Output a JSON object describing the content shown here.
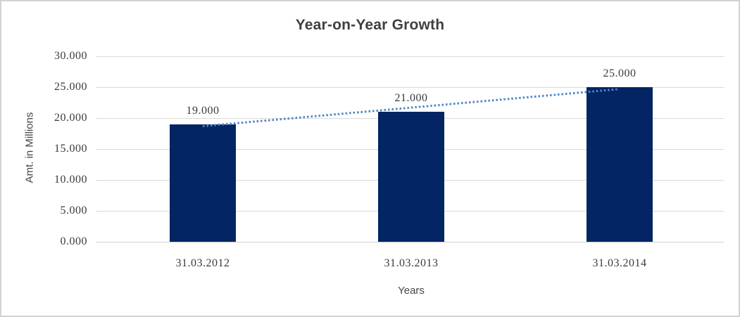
{
  "chart_data": {
    "type": "bar",
    "title": "Year-on-Year Growth",
    "xlabel": "Years",
    "ylabel": "Amt. in Millions",
    "categories": [
      "31.03.2012",
      "31.03.2013",
      "31.03.2014"
    ],
    "values": [
      19,
      21,
      25
    ],
    "data_labels": [
      "19.000",
      "21.000",
      "25.000"
    ],
    "y_ticks": [
      "30.000",
      "25.000",
      "20.000",
      "15.000",
      "10.000",
      "5.000",
      "0.000"
    ],
    "ylim": [
      0,
      30
    ],
    "y_tick_step": 5,
    "grid": true,
    "legend": "none",
    "bar_color": "#032564",
    "trendline": {
      "type": "linear",
      "style": "dotted",
      "color": "#4f86c6",
      "start_value": 18.667,
      "end_value": 24.667
    },
    "colors": {
      "title": "#3f3f3f",
      "tick_labels": "#3a3a3a",
      "axis_titles": "#454545",
      "gridline": "#d9d9d9",
      "baseline": "#d0d0d0",
      "background": "#ffffff",
      "border": "#d2d2d2"
    }
  }
}
